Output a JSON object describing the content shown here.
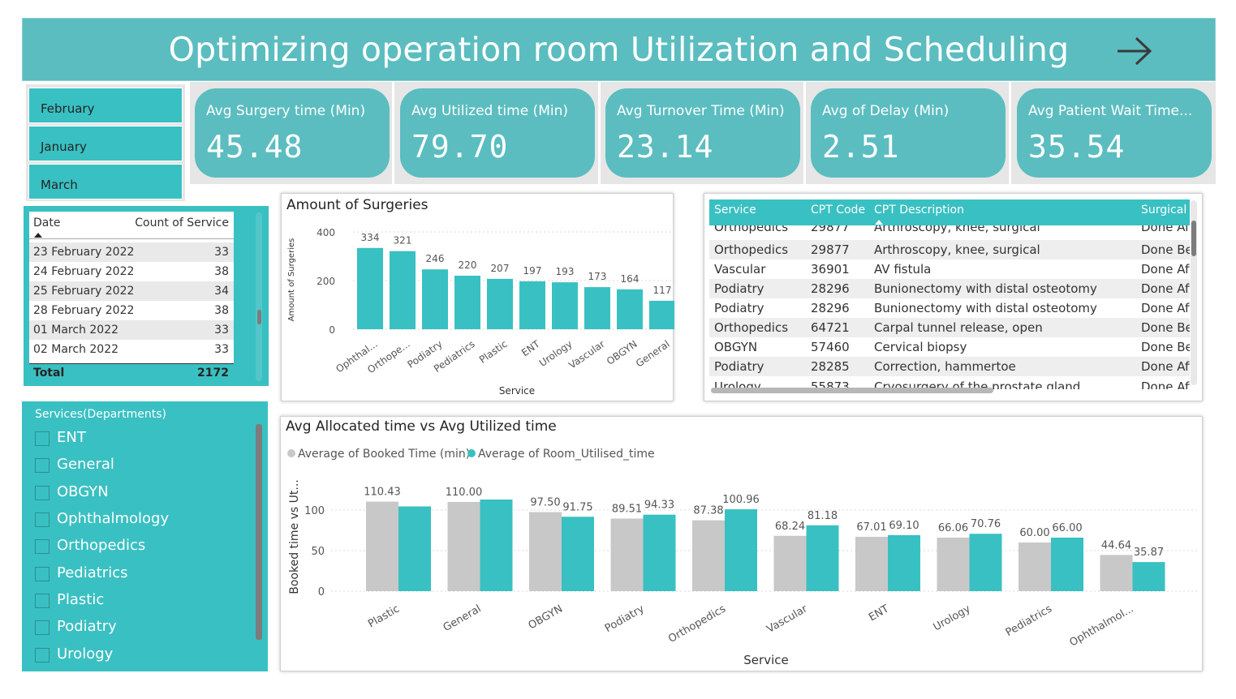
{
  "header": {
    "title": "Optimizing operation room Utilization and Scheduling",
    "arrow_icon": "arrow-right-icon"
  },
  "months": [
    "February",
    "January",
    "March"
  ],
  "kpis": [
    {
      "label": "Avg Surgery time (Min)",
      "value": "45.48"
    },
    {
      "label": "Avg Utilized time (Min)",
      "value": "79.70"
    },
    {
      "label": "Avg Turnover Time (Min)",
      "value": "23.14"
    },
    {
      "label": "Avg of Delay (Min)",
      "value": "2.51"
    },
    {
      "label": "Avg Patient Wait Time...",
      "value": "35.54"
    }
  ],
  "date_table": {
    "col_date": "Date",
    "col_count": "Count of Service",
    "rows": [
      {
        "date": "23 February 2022",
        "count": "33"
      },
      {
        "date": "24 February 2022",
        "count": "38"
      },
      {
        "date": "25 February 2022",
        "count": "34"
      },
      {
        "date": "28 February 2022",
        "count": "38"
      },
      {
        "date": "01 March 2022",
        "count": "33"
      },
      {
        "date": "02 March 2022",
        "count": "33"
      }
    ],
    "total_label": "Total",
    "total_value": "2172"
  },
  "services_slicer": {
    "header": "Services(Departments)",
    "items": [
      "ENT",
      "General",
      "OBGYN",
      "Ophthalmology",
      "Orthopedics",
      "Pediatrics",
      "Plastic",
      "Podiatry",
      "Urology"
    ]
  },
  "cpt_table": {
    "headers": [
      "Service",
      "CPT Code",
      "CPT Description",
      "Surgical T"
    ],
    "partial_top": {
      "service": "Orthopedics",
      "code": "29877",
      "desc": "Arthroscopy, knee, surgical",
      "surgical": "Done Aft"
    },
    "rows": [
      {
        "service": "Orthopedics",
        "code": "29877",
        "desc": "Arthroscopy, knee, surgical",
        "surgical": "Done Bef"
      },
      {
        "service": "Vascular",
        "code": "36901",
        "desc": "AV fistula",
        "surgical": "Done Aft"
      },
      {
        "service": "Podiatry",
        "code": "28296",
        "desc": "Bunionectomy with distal osteotomy",
        "surgical": "Done Aft"
      },
      {
        "service": "Podiatry",
        "code": "28296",
        "desc": "Bunionectomy with distal osteotomy",
        "surgical": "Done Aft"
      },
      {
        "service": "Orthopedics",
        "code": "64721",
        "desc": "Carpal tunnel release, open",
        "surgical": "Done Bef"
      },
      {
        "service": "OBGYN",
        "code": "57460",
        "desc": "Cervical biopsy",
        "surgical": "Done Bef"
      },
      {
        "service": "Podiatry",
        "code": "28285",
        "desc": "Correction, hammertoe",
        "surgical": "Done Aft"
      }
    ],
    "partial_bottom": {
      "service": "Urology",
      "code": "55873",
      "desc": "Cryosurgery of the prostate gland",
      "surgical": "Done Aft"
    }
  },
  "chart_data": [
    {
      "type": "bar",
      "title": "Amount of Surgeries",
      "xlabel": "Service",
      "ylabel": "Amount of Surgeries",
      "categories": [
        "Ophthal...",
        "Orthope...",
        "Podiatry",
        "Pediatrics",
        "Plastic",
        "ENT",
        "Urology",
        "Vascular",
        "OBGYN",
        "General"
      ],
      "values": [
        334,
        321,
        246,
        220,
        207,
        197,
        193,
        173,
        164,
        117
      ],
      "yticks": [
        0,
        200,
        400
      ],
      "ylim": [
        0,
        400
      ],
      "color": "#39c0c2"
    },
    {
      "type": "bar",
      "title": "Avg Allocated time vs Avg Utilized time",
      "xlabel": "Service",
      "ylabel": "Booked time vs Ut...",
      "categories": [
        "Plastic",
        "General",
        "OBGYN",
        "Podiatry",
        "Orthopedics",
        "Vascular",
        "ENT",
        "Urology",
        "Pediatrics",
        "Ophthalmol..."
      ],
      "series": [
        {
          "name": "Average of Booked Time (min)",
          "color": "#c8c8c8",
          "values": [
            110.43,
            110.0,
            97.5,
            89.51,
            87.38,
            68.24,
            67.01,
            66.06,
            60.0,
            44.64
          ]
        },
        {
          "name": "Average of Room_Utilised_time",
          "color": "#39c0c2",
          "values": [
            104.5,
            113.0,
            91.75,
            94.33,
            100.96,
            81.18,
            69.1,
            70.76,
            66.0,
            35.87
          ]
        }
      ],
      "labels": [
        [
          "110.43",
          ""
        ],
        [
          "110.00",
          ""
        ],
        [
          "97.50",
          "91.75"
        ],
        [
          "89.51",
          "94.33"
        ],
        [
          "87.38",
          "100.96"
        ],
        [
          "68.24",
          "81.18"
        ],
        [
          "67.01",
          "69.10"
        ],
        [
          "66.06",
          "70.76"
        ],
        [
          "60.00",
          "66.00"
        ],
        [
          "44.64",
          "35.87"
        ]
      ],
      "yticks": [
        0,
        50,
        100
      ],
      "ylim": [
        0,
        110
      ],
      "legend_position": "top-left"
    }
  ]
}
